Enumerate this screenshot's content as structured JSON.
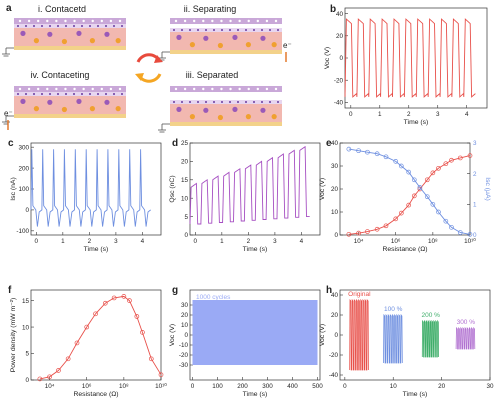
{
  "panel_letters": [
    "a",
    "b",
    "c",
    "d",
    "e",
    "f",
    "g",
    "h"
  ],
  "schematic": {
    "contacted": "i. Contacetd",
    "separating": "ii. Separating",
    "contacting": "iv. Contaceting",
    "separated": "iii. Separated",
    "electron": "e⁻",
    "colors": {
      "top": "#c9a8d8",
      "dots": "#e7d6f0",
      "body": "#f2b8b0",
      "bottom": "#f3d28a",
      "particle": "#f0a030",
      "cycle": [
        "#e84a3c",
        "#f5a623"
      ]
    }
  },
  "chart_data": [
    {
      "panel": "b",
      "type": "line",
      "xlabel": "Time (s)",
      "ylabel": "Voc (V)",
      "xlim": [
        -0.2,
        4.7
      ],
      "ylim": [
        -45,
        45
      ],
      "xticks": [
        0,
        1,
        2,
        3,
        4
      ],
      "yticks": [
        -40,
        -20,
        0,
        20,
        40
      ],
      "color": "#e8504a",
      "waveform": {
        "cycles": 11,
        "period": 0.41,
        "start": -0.2,
        "high": 35,
        "low": -35
      }
    },
    {
      "panel": "c",
      "type": "line",
      "xlabel": "Time (s)",
      "ylabel": "Isc (nA)",
      "xlim": [
        -0.2,
        4.7
      ],
      "ylim": [
        -120,
        320
      ],
      "xticks": [
        0,
        1,
        2,
        3,
        4
      ],
      "yticks": [
        -100,
        0,
        100,
        200,
        300
      ],
      "color": "#6e8fe0",
      "waveform": {
        "cycles": 11,
        "period": 0.41,
        "start": -0.2,
        "peak": 290,
        "neg": -80
      }
    },
    {
      "panel": "d",
      "type": "line",
      "xlabel": "Time (s)",
      "ylabel": "Qsc (nC)",
      "xlim": [
        -0.2,
        4.7
      ],
      "ylim": [
        0,
        25
      ],
      "xticks": [
        0,
        1,
        2,
        3,
        4
      ],
      "yticks": [
        0,
        5,
        10,
        15,
        20,
        25
      ],
      "color": "#a64fc2",
      "waveform": {
        "cycles": 11,
        "period": 0.41,
        "start": -0.2,
        "top_start": 14,
        "top_end": 24,
        "base_start": 3,
        "base_end": 5
      }
    },
    {
      "panel": "e",
      "type": "line",
      "xlabel": "Resistance (Ω)",
      "ylabel": "Voc (V)",
      "ylabel2": "Isc (μA)",
      "xscale": "log",
      "xlim": [
        1000,
        10000000000
      ],
      "xticks": [
        "10⁴",
        "10⁶",
        "10⁸",
        "10¹⁰"
      ],
      "ylim": [
        0,
        40
      ],
      "yticks": [
        0,
        10,
        20,
        30,
        40
      ],
      "ylim2": [
        0,
        3
      ],
      "yticks2": [
        0,
        1,
        2,
        3
      ],
      "series": [
        {
          "axis": "left",
          "color": "#e8504a",
          "x": [
            3000,
            10000,
            30000,
            100000,
            300000,
            1000000,
            2000000,
            5000000,
            10000000,
            20000000,
            50000000,
            100000000,
            200000000,
            500000000,
            1000000000,
            3000000000,
            10000000000
          ],
          "y": [
            0.3,
            0.8,
            1.5,
            2.5,
            4,
            7,
            9.5,
            13,
            17,
            20,
            24,
            27,
            29,
            31,
            32.5,
            33.5,
            34.5
          ]
        },
        {
          "axis": "right",
          "color": "#6e8fe0",
          "x": [
            3000,
            10000,
            30000,
            100000,
            300000,
            1000000,
            2000000,
            5000000,
            10000000,
            20000000,
            50000000,
            100000000,
            200000000,
            500000000,
            1000000000,
            3000000000,
            10000000000
          ],
          "y": [
            2.8,
            2.75,
            2.7,
            2.65,
            2.55,
            2.4,
            2.25,
            2.05,
            1.8,
            1.55,
            1.25,
            1.0,
            0.75,
            0.45,
            0.25,
            0.08,
            0.02
          ]
        }
      ]
    },
    {
      "panel": "f",
      "type": "line",
      "xlabel": "Resistance (Ω)",
      "ylabel": "Power density (mW m⁻²)",
      "xscale": "log",
      "xlim": [
        1000,
        10000000000
      ],
      "xticks": [
        "10⁴",
        "10⁶",
        "10⁸",
        "10¹⁰"
      ],
      "ylim": [
        0,
        17
      ],
      "yticks": [
        0,
        5,
        10,
        15
      ],
      "color": "#e8504a",
      "x": [
        3000,
        10000,
        30000,
        100000,
        300000,
        1000000,
        3000000,
        10000000,
        30000000,
        100000000,
        200000000,
        500000000,
        1000000000,
        3000000000,
        10000000000
      ],
      "y": [
        0.2,
        0.6,
        1.8,
        4,
        7,
        10,
        12.5,
        14.5,
        15.5,
        15.8,
        15,
        12,
        9,
        4,
        1
      ]
    },
    {
      "panel": "g",
      "type": "area",
      "xlabel": "Time (s)",
      "ylabel": "Voc (V)",
      "annotation": "1000 cycles",
      "xlim": [
        -10,
        510
      ],
      "ylim": [
        -45,
        45
      ],
      "xticks": [
        0,
        100,
        200,
        300,
        400,
        500
      ],
      "yticks": [
        -30,
        -20,
        -10,
        0,
        10,
        20,
        30
      ],
      "color": "#9aaaf5",
      "band": [
        -30,
        35
      ]
    },
    {
      "panel": "h",
      "type": "line",
      "xlabel": "Time (s)",
      "ylabel": "Voc (V)",
      "xlim": [
        -1,
        30
      ],
      "ylim": [
        -45,
        45
      ],
      "xticks": [
        0,
        10,
        20,
        30
      ],
      "yticks": [
        -40,
        -20,
        0,
        20,
        40
      ],
      "series": [
        {
          "name": "Original",
          "color": "#e8504a",
          "t0": 1,
          "t1": 5,
          "high": 35,
          "low": -35
        },
        {
          "name": "100 %",
          "color": "#6e8fe0",
          "t0": 8,
          "t1": 12,
          "high": 20,
          "low": -28
        },
        {
          "name": "200 %",
          "color": "#3fae6a",
          "t0": 16,
          "t1": 19.5,
          "high": 14,
          "low": -22
        },
        {
          "name": "300 %",
          "color": "#b06fd0",
          "t0": 23,
          "t1": 27,
          "high": 7,
          "low": -14
        }
      ]
    }
  ]
}
